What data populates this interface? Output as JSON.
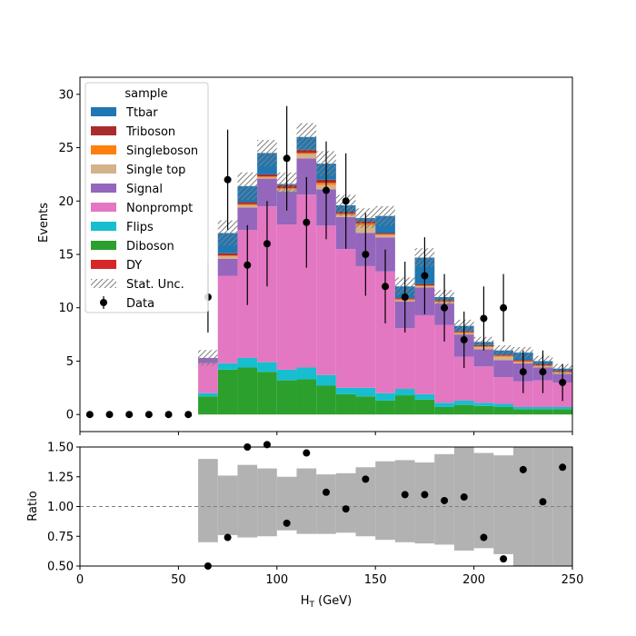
{
  "chart_data": [
    {
      "type": "bar",
      "stacked": true,
      "panel": "main",
      "ylabel": "Events",
      "xlim": [
        0,
        250
      ],
      "ylim": [
        -1.6,
        31.6
      ],
      "yticks": [
        0,
        5,
        10,
        15,
        20,
        25,
        30
      ],
      "bin_edges": [
        0,
        10,
        20,
        30,
        40,
        50,
        60,
        70,
        80,
        90,
        100,
        110,
        120,
        130,
        140,
        150,
        160,
        170,
        180,
        190,
        200,
        210,
        220,
        230,
        240,
        250
      ],
      "legend": {
        "title": "sample",
        "position": "top-left"
      },
      "series": [
        {
          "name": "DY",
          "color": "#d62728",
          "values": [
            0,
            0,
            0,
            0,
            0,
            0,
            0,
            0,
            0,
            0,
            0,
            0,
            0,
            0,
            0,
            0,
            0,
            0,
            0,
            0,
            0,
            0,
            0,
            0,
            0
          ]
        },
        {
          "name": "Diboson",
          "color": "#2ca02c",
          "values": [
            0,
            0,
            0,
            0,
            0,
            0,
            1.7,
            4.2,
            4.4,
            4.0,
            3.2,
            3.3,
            2.7,
            1.9,
            1.7,
            1.3,
            1.8,
            1.4,
            0.7,
            0.9,
            0.8,
            0.7,
            0.5,
            0.5,
            0.5
          ]
        },
        {
          "name": "Flips",
          "color": "#17becf",
          "values": [
            0,
            0,
            0,
            0,
            0,
            0,
            0.3,
            0.6,
            0.9,
            0.9,
            1.0,
            1.1,
            1.0,
            0.6,
            0.8,
            0.7,
            0.6,
            0.5,
            0.4,
            0.4,
            0.3,
            0.3,
            0.2,
            0.2,
            0.2
          ]
        },
        {
          "name": "Nonprompt",
          "color": "#e377c2",
          "values": [
            0,
            0,
            0,
            0,
            0,
            0,
            2.8,
            8.2,
            12.0,
            14.6,
            13.6,
            16.2,
            14.0,
            13.0,
            11.4,
            11.4,
            5.7,
            7.4,
            7.3,
            4.1,
            3.4,
            2.5,
            2.4,
            2.5,
            2.3
          ]
        },
        {
          "name": "Signal",
          "color": "#9467bd",
          "values": [
            0,
            0,
            0,
            0,
            0,
            0,
            0.5,
            1.6,
            2.1,
            2.6,
            3.1,
            3.4,
            3.4,
            3.0,
            3.1,
            3.2,
            2.5,
            2.6,
            2.0,
            2.1,
            1.6,
            1.6,
            1.7,
            1.2,
            0.8
          ]
        },
        {
          "name": "Single top",
          "color": "#d4b28c",
          "values": [
            0,
            0,
            0,
            0,
            0,
            0,
            0,
            0.2,
            0.2,
            0.1,
            0.2,
            0.4,
            0.4,
            0.2,
            0.7,
            0.2,
            0.1,
            0.1,
            0.1,
            0.1,
            0.2,
            0.3,
            0.1,
            0.1,
            0.1
          ]
        },
        {
          "name": "Singleboson",
          "color": "#ff7f0e",
          "values": [
            0,
            0,
            0,
            0,
            0,
            0,
            0,
            0.1,
            0.1,
            0.1,
            0.1,
            0.1,
            0.2,
            0.1,
            0.2,
            0.1,
            0.1,
            0.1,
            0.1,
            0.1,
            0.1,
            0.1,
            0.1,
            0.1,
            0.1
          ]
        },
        {
          "name": "Triboson",
          "color": "#aa2d2d",
          "values": [
            0,
            0,
            0,
            0,
            0,
            0,
            0,
            0.2,
            0.2,
            0.2,
            0.3,
            0.3,
            0.3,
            0.2,
            0.2,
            0.1,
            0.1,
            0.1,
            0.1,
            0.1,
            0.1,
            0.1,
            0.1,
            0.1,
            0.1
          ]
        },
        {
          "name": "Ttbar",
          "color": "#1f77b4",
          "values": [
            0,
            0,
            0,
            0,
            0,
            0,
            0,
            1.9,
            1.5,
            2.0,
            0.1,
            1.2,
            1.5,
            0.6,
            0.3,
            1.6,
            1.1,
            2.5,
            0.3,
            0.5,
            0.3,
            0.4,
            0.7,
            0.3,
            0.2
          ]
        }
      ],
      "stat_unc": {
        "name": "Stat. Unc.",
        "fractional": [
          0,
          0,
          0,
          0,
          0,
          0,
          0.14,
          0.07,
          0.06,
          0.05,
          0.05,
          0.05,
          0.05,
          0.05,
          0.05,
          0.05,
          0.07,
          0.06,
          0.06,
          0.07,
          0.07,
          0.08,
          0.09,
          0.1,
          0.1
        ]
      },
      "data": {
        "name": "Data",
        "x": [
          5,
          15,
          25,
          35,
          45,
          55,
          65,
          75,
          85,
          95,
          105,
          115,
          125,
          135,
          145,
          155,
          165,
          175,
          185,
          195,
          205,
          215,
          225,
          235,
          245
        ],
        "y": [
          0,
          0,
          0,
          0,
          0,
          0,
          11,
          22,
          14,
          16,
          24,
          18,
          21,
          20,
          15,
          12,
          11,
          13,
          10,
          7,
          9,
          10,
          4,
          4,
          3
        ]
      }
    },
    {
      "type": "scatter",
      "panel": "ratio",
      "xlabel": "H$_T$ (GeV)",
      "ylabel": "Ratio",
      "xlim": [
        0,
        250
      ],
      "ylim": [
        0.5,
        1.5
      ],
      "yticks": [
        0.5,
        0.75,
        1.0,
        1.25,
        1.5
      ],
      "xticks": [
        0,
        50,
        100,
        150,
        200,
        250
      ],
      "reference_line": 1.0,
      "x": [
        65,
        75,
        85,
        95,
        105,
        115,
        125,
        135,
        145,
        155,
        165,
        175,
        185,
        195,
        205,
        215,
        225,
        235,
        245
      ],
      "y": [
        0.5,
        0.74,
        1.5,
        1.52,
        0.86,
        1.45,
        1.12,
        0.98,
        1.23,
        null,
        1.1,
        1.1,
        1.05,
        1.08,
        0.74,
        0.56,
        1.31,
        1.04,
        1.33
      ],
      "uncertainty_band": {
        "x": [
          60,
          70,
          80,
          90,
          100,
          110,
          120,
          130,
          140,
          150,
          160,
          170,
          180,
          190,
          200,
          210,
          220,
          230,
          240
        ],
        "low": [
          0.7,
          0.76,
          0.74,
          0.75,
          0.8,
          0.77,
          0.77,
          0.78,
          0.75,
          0.72,
          0.7,
          0.69,
          0.68,
          0.63,
          0.65,
          0.6,
          0.5,
          0.5,
          0.5
        ],
        "high": [
          1.4,
          1.26,
          1.35,
          1.32,
          1.25,
          1.32,
          1.27,
          1.28,
          1.33,
          1.38,
          1.39,
          1.37,
          1.44,
          1.5,
          1.45,
          1.43,
          1.5,
          1.5,
          1.5
        ]
      }
    }
  ]
}
